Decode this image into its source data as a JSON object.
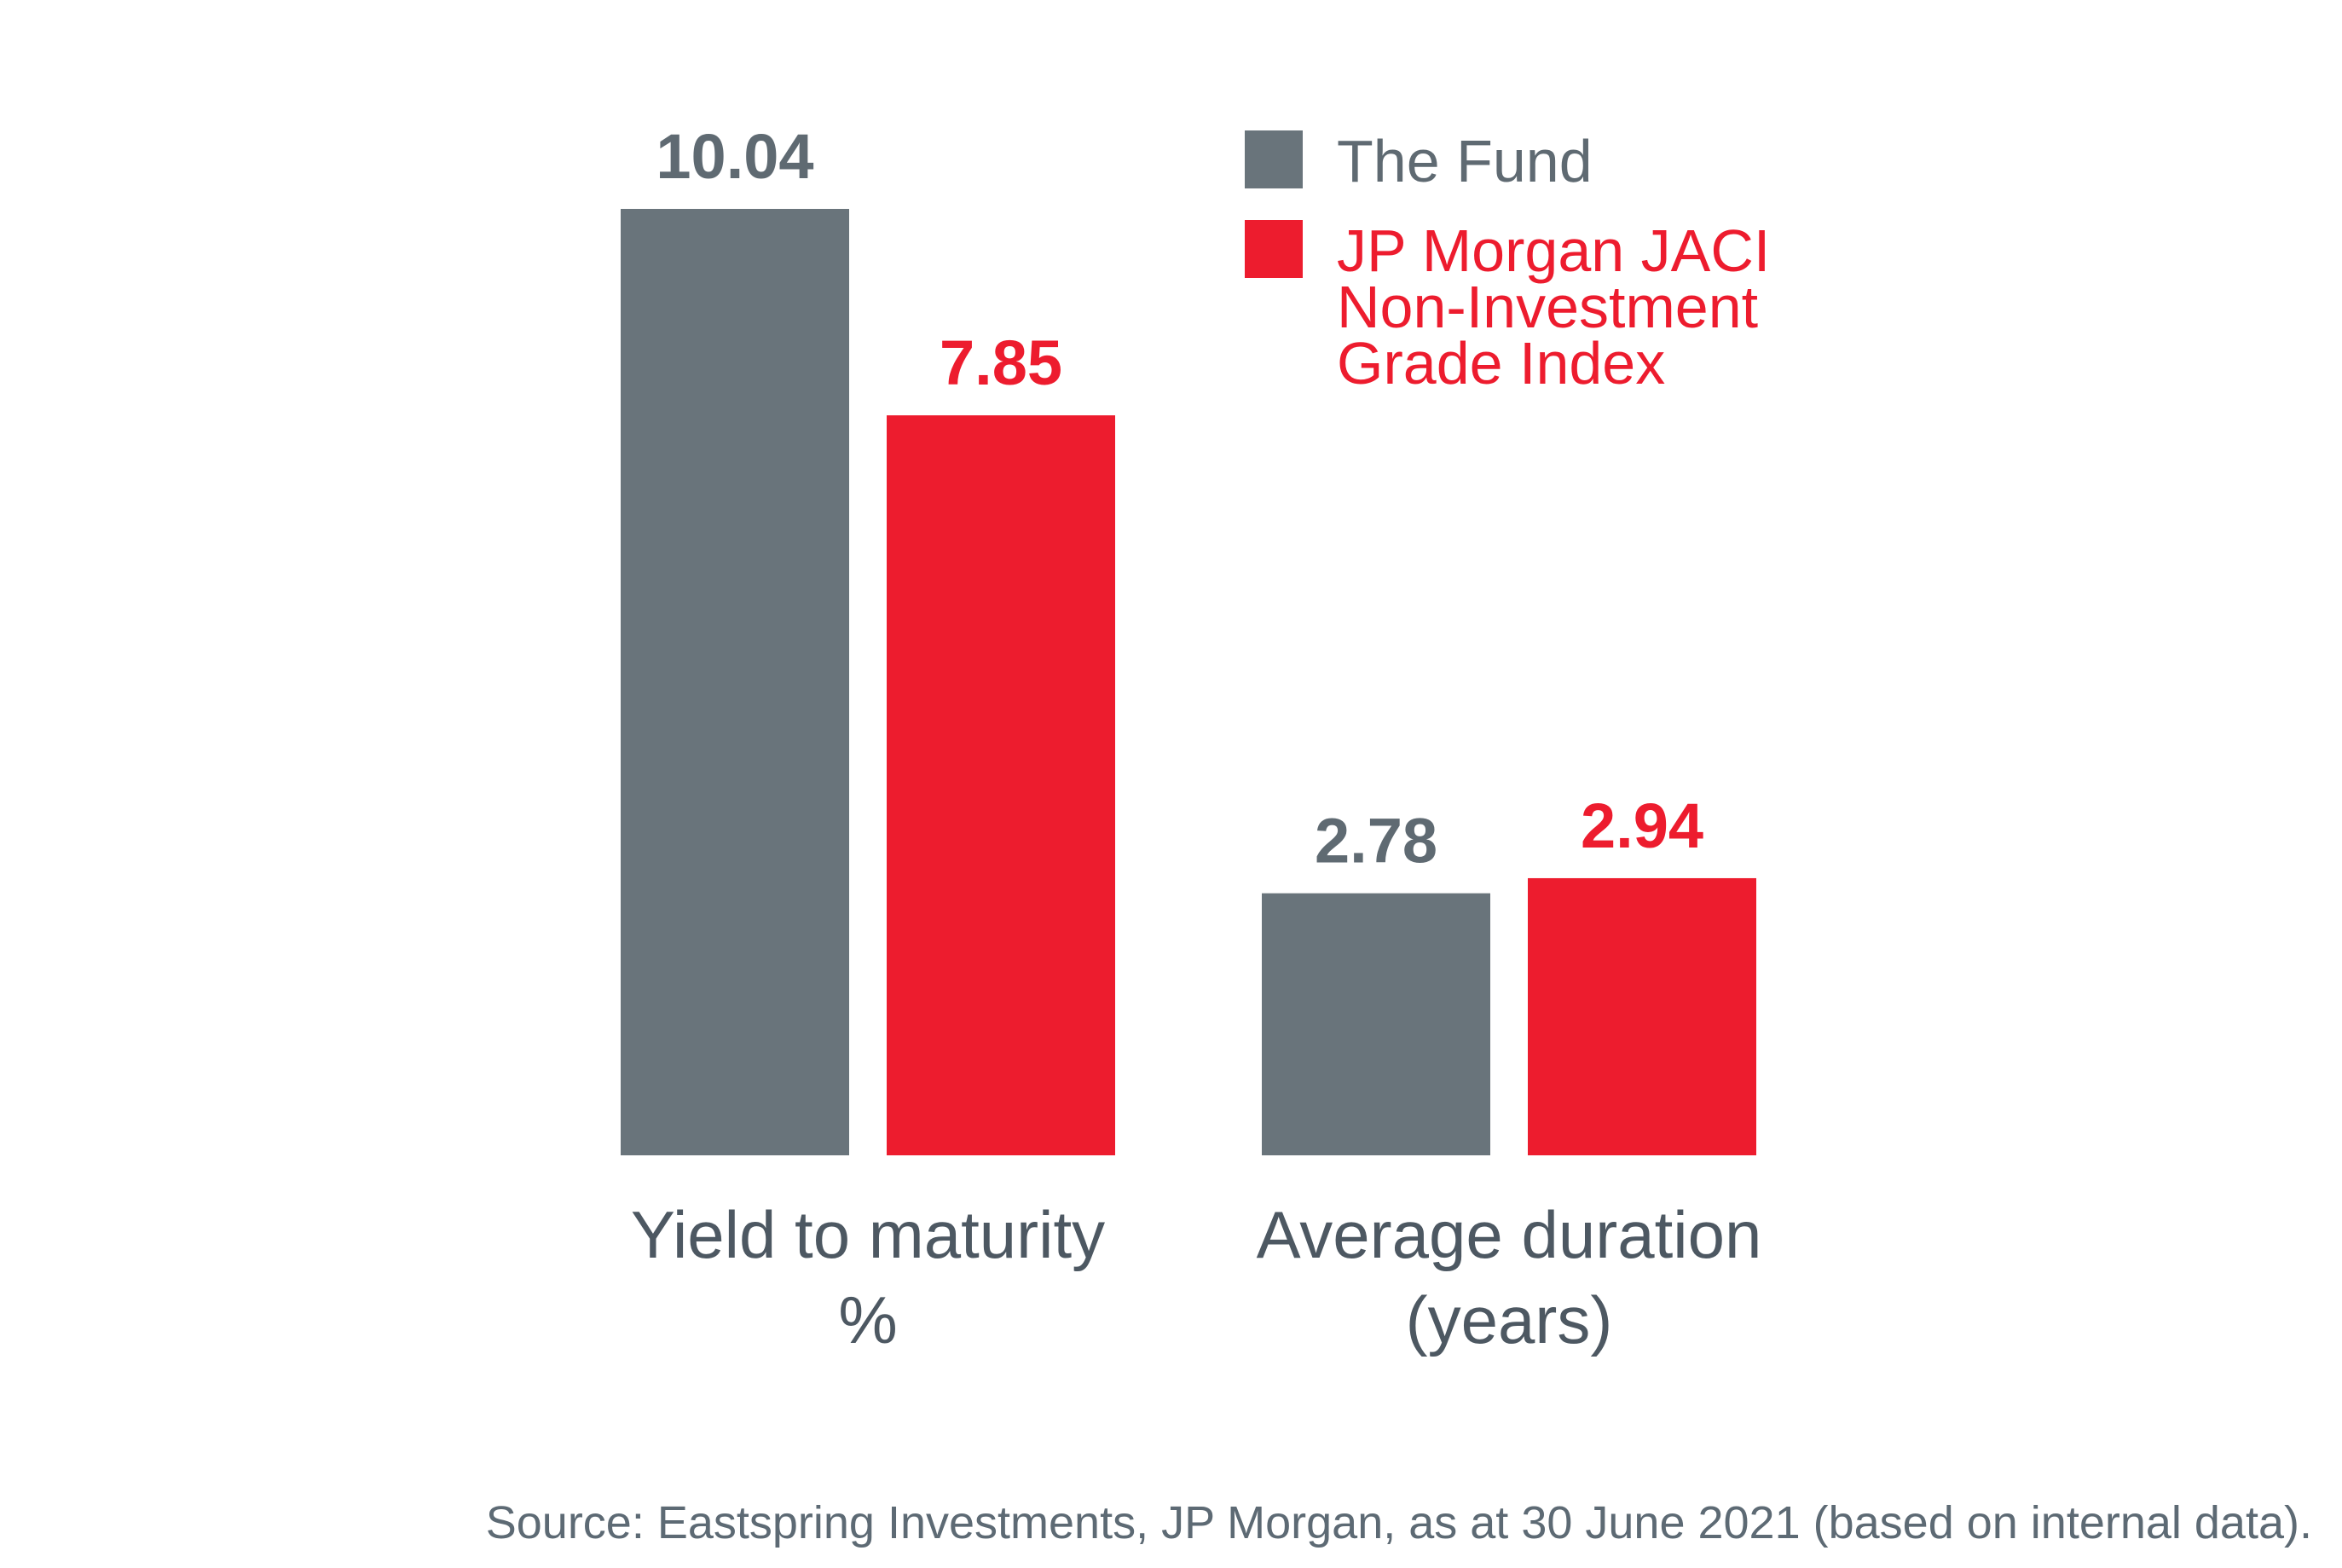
{
  "chart_data": {
    "type": "bar",
    "categories": [
      [
        "Yield to maturity",
        "%"
      ],
      [
        "Average duration",
        "(years)"
      ]
    ],
    "series": [
      {
        "name": "The Fund",
        "values": [
          10.04,
          2.78
        ],
        "labels": [
          "10.04",
          "2.78"
        ]
      },
      {
        "name": "JP Morgan JACI Non-Investment Grade Index",
        "values": [
          7.85,
          2.94
        ],
        "labels": [
          "7.85",
          "2.94"
        ]
      }
    ],
    "legend": {
      "placement": "top-right",
      "entries": [
        {
          "lines": [
            "The Fund"
          ]
        },
        {
          "lines": [
            "JP Morgan JACI",
            "Non-Investment",
            "Grade Index"
          ]
        }
      ]
    },
    "colors": {
      "fund": "#69747b",
      "index": "#ed1c2e",
      "fund_text": "#5f6a72"
    },
    "ylim": [
      0,
      10.04
    ],
    "grid": false,
    "axes_visible": false
  },
  "source": "Source: Eastspring Investments, JP Morgan, as at 30 June 2021 (based on internal data)."
}
